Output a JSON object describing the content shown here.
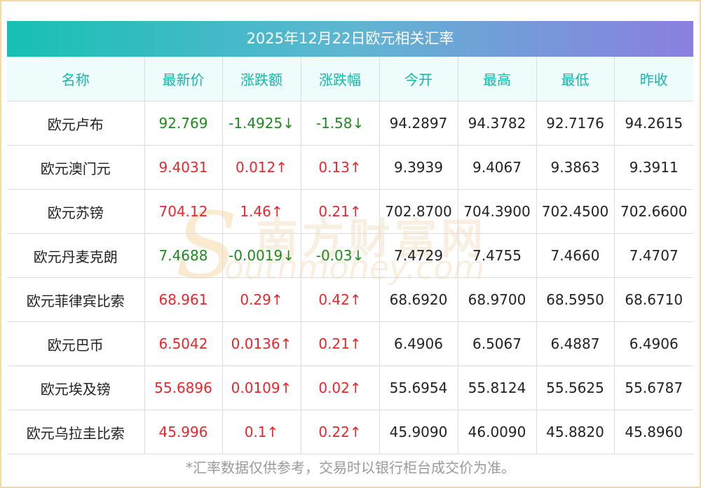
{
  "title": "2025年12月22日欧元相关汇率",
  "headers": [
    "名称",
    "最新价",
    "涨跌额",
    "涨跌幅",
    "今开",
    "最高",
    "最低",
    "昨收"
  ],
  "rows": [
    {
      "name": "欧元卢布",
      "last": "92.769",
      "chg": "-1.4925↓",
      "pct": "-1.58↓",
      "open": "94.2897",
      "high": "94.3782",
      "low": "92.7176",
      "prev": "94.2615",
      "dir": "down"
    },
    {
      "name": "欧元澳门元",
      "last": "9.4031",
      "chg": "0.012↑",
      "pct": "0.13↑",
      "open": "9.3939",
      "high": "9.4067",
      "low": "9.3863",
      "prev": "9.3911",
      "dir": "up"
    },
    {
      "name": "欧元苏镑",
      "last": "704.12",
      "chg": "1.46↑",
      "pct": "0.21↑",
      "open": "702.8700",
      "high": "704.3900",
      "low": "702.4500",
      "prev": "702.6600",
      "dir": "up"
    },
    {
      "name": "欧元丹麦克朗",
      "last": "7.4688",
      "chg": "-0.0019↓",
      "pct": "-0.03↓",
      "open": "7.4729",
      "high": "7.4755",
      "low": "7.4660",
      "prev": "7.4707",
      "dir": "down"
    },
    {
      "name": "欧元菲律宾比索",
      "last": "68.961",
      "chg": "0.29↑",
      "pct": "0.42↑",
      "open": "68.6920",
      "high": "68.9700",
      "low": "68.5950",
      "prev": "68.6710",
      "dir": "up"
    },
    {
      "name": "欧元巴币",
      "last": "6.5042",
      "chg": "0.0136↑",
      "pct": "0.21↑",
      "open": "6.4906",
      "high": "6.5067",
      "low": "6.4887",
      "prev": "6.4906",
      "dir": "up"
    },
    {
      "name": "欧元埃及镑",
      "last": "55.6896",
      "chg": "0.0109↑",
      "pct": "0.02↑",
      "open": "55.6954",
      "high": "55.8124",
      "low": "55.5625",
      "prev": "55.6787",
      "dir": "up"
    },
    {
      "name": "欧元乌拉圭比索",
      "last": "45.996",
      "chg": "0.1↑",
      "pct": "0.22↑",
      "open": "45.9090",
      "high": "46.0090",
      "low": "45.8820",
      "prev": "45.8960",
      "dir": "up"
    }
  ],
  "footnote": "*汇率数据仅供参考，交易时以银行柜台成交价为准。",
  "watermark": {
    "cn": "南方财富网",
    "en": "outhmoney.com",
    "s": "S"
  },
  "colors": {
    "up": "#e8262b",
    "down": "#1e8a1e",
    "header_text": "#14b5aa"
  }
}
